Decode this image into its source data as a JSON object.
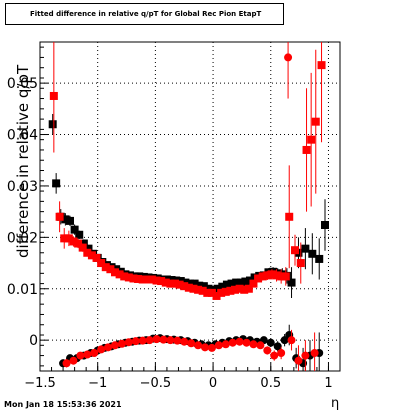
{
  "chart_data": {
    "type": "scatter",
    "title": "Fitted difference in relative q/pT for Global Rec Pion EtapT",
    "xlabel": "η",
    "ylabel": "difference in relative q/pT",
    "xlim": [
      -1.5,
      1.1
    ],
    "ylim": [
      -0.006,
      0.058
    ],
    "grid": true,
    "x_ticks": [
      -1.5,
      -1,
      -0.5,
      0,
      0.5,
      1
    ],
    "x_tick_labels": [
      "−1.5",
      "−1",
      "−0.5",
      "0",
      "0.5",
      "1"
    ],
    "y_ticks": [
      0,
      0.01,
      0.02,
      0.03,
      0.04,
      0.05
    ],
    "y_tick_labels": [
      "0",
      "0.01",
      "0.02",
      "0.03",
      "0.04",
      "0.05"
    ],
    "series": [
      {
        "color": "#000000",
        "values_upper": [
          [
            -1.39,
            0.042,
            0.002
          ],
          [
            -1.36,
            0.0305,
            0.002
          ],
          [
            -1.32,
            0.024,
            0.0015
          ],
          [
            -1.28,
            0.0235,
            0.0012
          ],
          [
            -1.24,
            0.0232,
            0.001
          ],
          [
            -1.2,
            0.0215,
            0.001
          ],
          [
            -1.16,
            0.0205,
            0.0008
          ],
          [
            -1.12,
            0.0188,
            0.0008
          ],
          [
            -1.08,
            0.0178,
            0.0007
          ],
          [
            -1.04,
            0.0168,
            0.0006
          ],
          [
            -1.0,
            0.016,
            0.0006
          ],
          [
            -0.96,
            0.0152,
            0.0005
          ],
          [
            -0.92,
            0.0146,
            0.0005
          ],
          [
            -0.88,
            0.0142,
            0.0005
          ],
          [
            -0.84,
            0.0138,
            0.0005
          ],
          [
            -0.8,
            0.0133,
            0.0004
          ],
          [
            -0.76,
            0.0128,
            0.0004
          ],
          [
            -0.72,
            0.0126,
            0.0004
          ],
          [
            -0.68,
            0.0124,
            0.0004
          ],
          [
            -0.64,
            0.0124,
            0.0004
          ],
          [
            -0.6,
            0.0123,
            0.0004
          ],
          [
            -0.56,
            0.0122,
            0.0004
          ],
          [
            -0.52,
            0.0121,
            0.0004
          ],
          [
            -0.48,
            0.012,
            0.0004
          ],
          [
            -0.44,
            0.0118,
            0.0004
          ],
          [
            -0.4,
            0.0118,
            0.0004
          ],
          [
            -0.36,
            0.0117,
            0.0004
          ],
          [
            -0.32,
            0.0116,
            0.0004
          ],
          [
            -0.28,
            0.0115,
            0.0004
          ],
          [
            -0.24,
            0.0112,
            0.0004
          ],
          [
            -0.2,
            0.011,
            0.0004
          ],
          [
            -0.16,
            0.011,
            0.0004
          ],
          [
            -0.12,
            0.0106,
            0.0004
          ],
          [
            -0.08,
            0.0105,
            0.0004
          ],
          [
            -0.04,
            0.01,
            0.0004
          ],
          [
            0.0,
            0.0098,
            0.0004
          ],
          [
            0.04,
            0.01,
            0.0004
          ],
          [
            0.08,
            0.0104,
            0.0004
          ],
          [
            0.12,
            0.0108,
            0.0004
          ],
          [
            0.16,
            0.011,
            0.0004
          ],
          [
            0.2,
            0.0112,
            0.0004
          ],
          [
            0.24,
            0.0112,
            0.0004
          ],
          [
            0.28,
            0.0114,
            0.0005
          ],
          [
            0.32,
            0.0116,
            0.0005
          ],
          [
            0.36,
            0.0122,
            0.0006
          ],
          [
            0.4,
            0.0125,
            0.0006
          ],
          [
            0.44,
            0.0126,
            0.0007
          ],
          [
            0.48,
            0.0132,
            0.0008
          ],
          [
            0.52,
            0.0133,
            0.0009
          ],
          [
            0.56,
            0.013,
            0.001
          ],
          [
            0.6,
            0.0128,
            0.0012
          ],
          [
            0.64,
            0.0125,
            0.0015
          ],
          [
            0.68,
            0.0112,
            0.003
          ],
          [
            0.74,
            0.017,
            0.003
          ],
          [
            0.8,
            0.0178,
            0.004
          ],
          [
            0.86,
            0.0168,
            0.004
          ],
          [
            0.92,
            0.0158,
            0.004
          ],
          [
            0.97,
            0.0224,
            0.005
          ]
        ],
        "values_lower": [
          [
            -1.3,
            -0.0045,
            0.0008
          ],
          [
            -1.24,
            -0.0035,
            0.0007
          ],
          [
            -1.18,
            -0.0035,
            0.0006
          ],
          [
            -1.12,
            -0.003,
            0.0006
          ],
          [
            -1.06,
            -0.0025,
            0.0005
          ],
          [
            -1.0,
            -0.002,
            0.0005
          ],
          [
            -0.94,
            -0.0015,
            0.0005
          ],
          [
            -0.88,
            -0.0012,
            0.0004
          ],
          [
            -0.82,
            -0.0008,
            0.0004
          ],
          [
            -0.76,
            -0.0005,
            0.0004
          ],
          [
            -0.7,
            -0.0003,
            0.0004
          ],
          [
            -0.64,
            -0.0001,
            0.0004
          ],
          [
            -0.58,
            0.0,
            0.0004
          ],
          [
            -0.52,
            0.0003,
            0.0004
          ],
          [
            -0.46,
            0.0004,
            0.0004
          ],
          [
            -0.4,
            0.0002,
            0.0004
          ],
          [
            -0.34,
            0.0001,
            0.0004
          ],
          [
            -0.28,
            0.0,
            0.0004
          ],
          [
            -0.22,
            -0.0002,
            0.0004
          ],
          [
            -0.16,
            -0.0005,
            0.0004
          ],
          [
            -0.1,
            -0.0008,
            0.0004
          ],
          [
            -0.04,
            -0.001,
            0.0004
          ],
          [
            0.02,
            -0.0008,
            0.0004
          ],
          [
            0.08,
            -0.0005,
            0.0004
          ],
          [
            0.14,
            -0.0002,
            0.0004
          ],
          [
            0.2,
            0.0,
            0.0005
          ],
          [
            0.26,
            0.0002,
            0.0005
          ],
          [
            0.32,
            0.0,
            0.0005
          ],
          [
            0.38,
            -0.0003,
            0.0006
          ],
          [
            0.44,
            0.0,
            0.0007
          ],
          [
            0.5,
            -0.0005,
            0.0008
          ],
          [
            0.56,
            -0.0012,
            0.001
          ],
          [
            0.62,
            0.0,
            0.0012
          ],
          [
            0.66,
            0.001,
            0.002
          ],
          [
            0.72,
            -0.0035,
            0.002
          ],
          [
            0.78,
            -0.0045,
            0.003
          ],
          [
            0.84,
            -0.003,
            0.003
          ],
          [
            0.92,
            -0.0025,
            0.004
          ]
        ]
      },
      {
        "color": "#ff0000",
        "values_upper": [
          [
            -1.38,
            0.0475,
            0.011
          ],
          [
            -1.33,
            0.024,
            0.003
          ],
          [
            -1.29,
            0.0198,
            0.002
          ],
          [
            -1.25,
            0.0198,
            0.0015
          ],
          [
            -1.21,
            0.0192,
            0.001
          ],
          [
            -1.17,
            0.0188,
            0.0009
          ],
          [
            -1.13,
            0.018,
            0.0008
          ],
          [
            -1.09,
            0.017,
            0.0007
          ],
          [
            -1.05,
            0.0165,
            0.0006
          ],
          [
            -1.01,
            0.016,
            0.0006
          ],
          [
            -0.97,
            0.015,
            0.0005
          ],
          [
            -0.93,
            0.0142,
            0.0005
          ],
          [
            -0.89,
            0.0138,
            0.0005
          ],
          [
            -0.85,
            0.0132,
            0.0005
          ],
          [
            -0.81,
            0.0128,
            0.0004
          ],
          [
            -0.77,
            0.0124,
            0.0004
          ],
          [
            -0.73,
            0.0122,
            0.0004
          ],
          [
            -0.69,
            0.012,
            0.0004
          ],
          [
            -0.65,
            0.0119,
            0.0004
          ],
          [
            -0.61,
            0.0118,
            0.0004
          ],
          [
            -0.57,
            0.0118,
            0.0004
          ],
          [
            -0.53,
            0.0118,
            0.0004
          ],
          [
            -0.49,
            0.0116,
            0.0004
          ],
          [
            -0.45,
            0.0115,
            0.0004
          ],
          [
            -0.41,
            0.0112,
            0.0004
          ],
          [
            -0.37,
            0.011,
            0.0004
          ],
          [
            -0.33,
            0.011,
            0.0004
          ],
          [
            -0.29,
            0.0108,
            0.0004
          ],
          [
            -0.25,
            0.0105,
            0.0004
          ],
          [
            -0.21,
            0.0102,
            0.0004
          ],
          [
            -0.17,
            0.01,
            0.0004
          ],
          [
            -0.13,
            0.0098,
            0.0004
          ],
          [
            -0.09,
            0.0096,
            0.0004
          ],
          [
            -0.05,
            0.0092,
            0.0004
          ],
          [
            -0.01,
            0.0092,
            0.0004
          ],
          [
            0.03,
            0.0086,
            0.0004
          ],
          [
            0.07,
            0.0092,
            0.0004
          ],
          [
            0.11,
            0.0094,
            0.0004
          ],
          [
            0.15,
            0.0096,
            0.0004
          ],
          [
            0.19,
            0.0098,
            0.0004
          ],
          [
            0.23,
            0.01,
            0.0005
          ],
          [
            0.27,
            0.0098,
            0.0005
          ],
          [
            0.31,
            0.01,
            0.0005
          ],
          [
            0.35,
            0.011,
            0.0006
          ],
          [
            0.39,
            0.012,
            0.0007
          ],
          [
            0.43,
            0.0124,
            0.0008
          ],
          [
            0.47,
            0.0126,
            0.0009
          ],
          [
            0.51,
            0.0128,
            0.001
          ],
          [
            0.55,
            0.0126,
            0.0012
          ],
          [
            0.59,
            0.0124,
            0.0014
          ],
          [
            0.63,
            0.0124,
            0.0018
          ],
          [
            0.66,
            0.024,
            0.01
          ],
          [
            0.71,
            0.0175,
            0.003
          ],
          [
            0.76,
            0.015,
            0.004
          ],
          [
            0.81,
            0.037,
            0.012
          ],
          [
            0.85,
            0.039,
            0.013
          ],
          [
            0.89,
            0.0425,
            0.014
          ],
          [
            0.94,
            0.0535,
            0.015
          ]
        ],
        "values_lower": [
          [
            -1.27,
            -0.0045,
            0.0008
          ],
          [
            -1.21,
            -0.004,
            0.0007
          ],
          [
            -1.15,
            -0.003,
            0.0006
          ],
          [
            -1.09,
            -0.0028,
            0.0006
          ],
          [
            -1.03,
            -0.0025,
            0.0005
          ],
          [
            -0.97,
            -0.0018,
            0.0005
          ],
          [
            -0.91,
            -0.0014,
            0.0005
          ],
          [
            -0.85,
            -0.001,
            0.0004
          ],
          [
            -0.79,
            -0.0007,
            0.0004
          ],
          [
            -0.73,
            -0.0004,
            0.0004
          ],
          [
            -0.67,
            -0.0002,
            0.0004
          ],
          [
            -0.61,
            -0.0001,
            0.0004
          ],
          [
            -0.55,
            0.0,
            0.0004
          ],
          [
            -0.49,
            0.0002,
            0.0004
          ],
          [
            -0.43,
            0.0001,
            0.0004
          ],
          [
            -0.37,
            0.0,
            0.0004
          ],
          [
            -0.31,
            -0.0001,
            0.0004
          ],
          [
            -0.25,
            -0.0003,
            0.0004
          ],
          [
            -0.19,
            -0.0006,
            0.0004
          ],
          [
            -0.13,
            -0.001,
            0.0004
          ],
          [
            -0.07,
            -0.0014,
            0.0004
          ],
          [
            -0.01,
            -0.0015,
            0.0004
          ],
          [
            0.05,
            -0.001,
            0.0004
          ],
          [
            0.11,
            -0.0008,
            0.0004
          ],
          [
            0.17,
            -0.0005,
            0.0005
          ],
          [
            0.23,
            -0.0003,
            0.0005
          ],
          [
            0.29,
            -0.0005,
            0.0005
          ],
          [
            0.35,
            -0.0008,
            0.0006
          ],
          [
            0.41,
            -0.001,
            0.0007
          ],
          [
            0.47,
            -0.002,
            0.0008
          ],
          [
            0.53,
            -0.003,
            0.001
          ],
          [
            0.59,
            -0.0025,
            0.0012
          ],
          [
            0.65,
            0.055,
            0.008
          ],
          [
            0.68,
            0.0,
            0.002
          ],
          [
            0.74,
            -0.004,
            0.003
          ],
          [
            0.8,
            -0.003,
            0.003
          ],
          [
            0.88,
            -0.0025,
            0.004
          ]
        ]
      }
    ]
  },
  "footer": {
    "timestamp": "Mon Jan 18 15:53:36 2021"
  }
}
